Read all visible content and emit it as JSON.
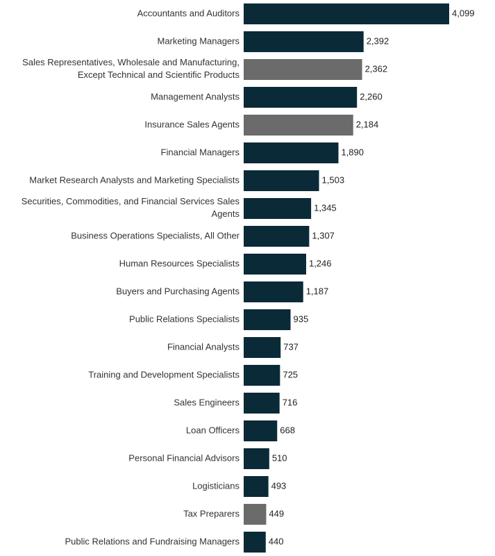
{
  "chart_data": {
    "type": "bar",
    "orientation": "horizontal",
    "categories": [
      "Accountants and Auditors",
      "Marketing Managers",
      [
        "Sales Representatives, Wholesale and Manufacturing,",
        "Except Technical and Scientific Products"
      ],
      "Management Analysts",
      "Insurance Sales Agents",
      "Financial Managers",
      "Market Research Analysts and Marketing Specialists",
      [
        "Securities, Commodities, and Financial Services Sales",
        "Agents"
      ],
      "Business Operations Specialists, All Other",
      "Human Resources Specialists",
      "Buyers and Purchasing Agents",
      "Public Relations Specialists",
      "Financial Analysts",
      "Training and Development Specialists",
      "Sales Engineers",
      "Loan Officers",
      "Personal Financial Advisors",
      "Logisticians",
      "Tax Preparers",
      "Public Relations and Fundraising Managers"
    ],
    "values": [
      4099,
      2392,
      2362,
      2260,
      2184,
      1890,
      1503,
      1345,
      1307,
      1246,
      1187,
      935,
      737,
      725,
      716,
      668,
      510,
      493,
      449,
      440
    ],
    "value_labels": [
      "4,099",
      "2,392",
      "2,362",
      "2,260",
      "2,184",
      "1,890",
      "1,503",
      "1,345",
      "1,307",
      "1,246",
      "1,187",
      "935",
      "737",
      "725",
      "716",
      "668",
      "510",
      "493",
      "449",
      "440"
    ],
    "highlighted": [
      false,
      false,
      true,
      false,
      true,
      false,
      false,
      false,
      false,
      false,
      false,
      false,
      false,
      false,
      false,
      false,
      false,
      false,
      true,
      false
    ],
    "colors": {
      "bar": "#0b2a38",
      "bar_highlight": "#6b6b6b",
      "label": "#333333",
      "value_label": "#222222"
    },
    "xlim": [
      0,
      4099
    ],
    "grid": false,
    "legend": "none",
    "title": "",
    "xlabel": "",
    "ylabel": ""
  }
}
